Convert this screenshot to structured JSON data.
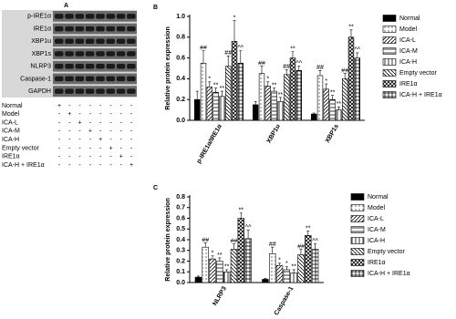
{
  "panel_a": {
    "label": "A",
    "bands": [
      "p-IRE1α",
      "IRE1α",
      "XBP1u",
      "XBP1s",
      "NLRP3",
      "Caspase-1",
      "GAPDH"
    ],
    "groups": [
      "Normal",
      "Model",
      "ICA-L",
      "ICA-M",
      "ICA-H",
      "Empty vector",
      "IRE1α",
      "ICA-H + IRE1α"
    ],
    "signs": [
      [
        "+",
        "-",
        "-",
        "-",
        "-",
        "-",
        "-",
        "-"
      ],
      [
        "-",
        "+",
        "-",
        "-",
        "-",
        "-",
        "-",
        "-"
      ],
      [
        "-",
        "-",
        "+",
        "-",
        "-",
        "-",
        "-",
        "-"
      ],
      [
        "-",
        "-",
        "-",
        "+",
        "-",
        "-",
        "-",
        "-"
      ],
      [
        "-",
        "-",
        "-",
        "-",
        "+",
        "-",
        "-",
        "-"
      ],
      [
        "-",
        "-",
        "-",
        "-",
        "-",
        "+",
        "-",
        "-"
      ],
      [
        "-",
        "-",
        "-",
        "-",
        "-",
        "-",
        "+",
        "-"
      ],
      [
        "-",
        "-",
        "-",
        "-",
        "-",
        "-",
        "-",
        "+"
      ]
    ]
  },
  "chart_data": [
    {
      "type": "bar",
      "panel": "B",
      "y_label": "Relative protein expression",
      "categories": [
        "p-IRE1α/IRE1α",
        "XBP1u",
        "XBP1s"
      ],
      "ylim": [
        0,
        1.0
      ],
      "yticks": [
        {
          "value": 0,
          "label": "0.0"
        },
        {
          "value": 0.2,
          "label": "0.2"
        },
        {
          "value": 0.4,
          "label": "0.4"
        },
        {
          "value": 0.6,
          "label": "0.6"
        },
        {
          "value": 0.8,
          "label": "0.8"
        },
        {
          "value": 1.0,
          "label": "1.0"
        }
      ],
      "series": [
        {
          "name": "Normal",
          "color": "#000000",
          "pattern": "solid",
          "values": [
            0.2,
            0.15,
            0.06
          ],
          "errors": [
            0.08,
            0.03,
            0.01
          ],
          "significance": [
            null,
            null,
            null
          ]
        },
        {
          "name": "Model",
          "color": "#000000",
          "pattern": "dots",
          "values": [
            0.55,
            0.45,
            0.43
          ],
          "errors": [
            0.12,
            0.07,
            0.05
          ],
          "significance": [
            "##",
            "##",
            "##"
          ]
        },
        {
          "name": "ICA-L",
          "color": "#000000",
          "pattern": "dlines",
          "values": [
            0.32,
            0.33,
            0.3
          ],
          "errors": [
            0.05,
            0.04,
            0.05
          ],
          "significance": [
            "*",
            "*",
            "*"
          ]
        },
        {
          "name": "ICA-M",
          "color": "#000000",
          "pattern": "hlines",
          "values": [
            0.27,
            0.28,
            0.2
          ],
          "errors": [
            0.04,
            0.03,
            0.04
          ],
          "significance": [
            "**",
            "**",
            "**"
          ]
        },
        {
          "name": "ICA-H",
          "color": "#000000",
          "pattern": "vlines",
          "values": [
            0.23,
            0.18,
            0.1
          ],
          "errors": [
            0.05,
            0.04,
            0.03
          ],
          "significance": [
            "**",
            "**",
            "**"
          ]
        },
        {
          "name": "Empty vector",
          "color": "#000000",
          "pattern": "ddown",
          "values": [
            0.52,
            0.44,
            0.4
          ],
          "errors": [
            0.1,
            0.05,
            0.05
          ],
          "significance": [
            "##",
            "##",
            "##"
          ]
        },
        {
          "name": "IRE1α",
          "color": "#000000",
          "pattern": "cross",
          "values": [
            0.76,
            0.6,
            0.8
          ],
          "errors": [
            0.2,
            0.06,
            0.07
          ],
          "significance": [
            "*",
            "**",
            "**"
          ]
        },
        {
          "name": "ICA-H + IRE1α",
          "color": "#000000",
          "pattern": "grid",
          "values": [
            0.55,
            0.48,
            0.6
          ],
          "errors": [
            0.12,
            0.04,
            0.05
          ],
          "significance": [
            "^^",
            "^^",
            "^^"
          ]
        }
      ]
    },
    {
      "type": "bar",
      "panel": "C",
      "y_label": "Relative protein expression",
      "categories": [
        "NLRP3",
        "Caspase-1"
      ],
      "ylim": [
        0,
        0.8
      ],
      "yticks": [
        {
          "value": 0,
          "label": "0.0"
        },
        {
          "value": 0.1,
          "label": "0.1"
        },
        {
          "value": 0.2,
          "label": "0.2"
        },
        {
          "value": 0.3,
          "label": "0.3"
        },
        {
          "value": 0.4,
          "label": "0.4"
        },
        {
          "value": 0.5,
          "label": "0.5"
        },
        {
          "value": 0.6,
          "label": "0.6"
        },
        {
          "value": 0.7,
          "label": "0.7"
        },
        {
          "value": 0.8,
          "label": "0.8"
        }
      ],
      "series": [
        {
          "name": "Normal",
          "color": "#000000",
          "pattern": "solid",
          "values": [
            0.05,
            0.03
          ],
          "errors": [
            0.01,
            0.01
          ],
          "significance": [
            null,
            null
          ]
        },
        {
          "name": "Model",
          "color": "#000000",
          "pattern": "dots",
          "values": [
            0.33,
            0.27
          ],
          "errors": [
            0.04,
            0.06
          ],
          "significance": [
            "##",
            "##"
          ]
        },
        {
          "name": "ICA-L",
          "color": "#000000",
          "pattern": "dlines",
          "values": [
            0.22,
            0.16
          ],
          "errors": [
            0.03,
            0.02
          ],
          "significance": [
            "*",
            "*"
          ]
        },
        {
          "name": "ICA-M",
          "color": "#000000",
          "pattern": "hlines",
          "values": [
            0.2,
            0.12
          ],
          "errors": [
            0.03,
            0.03
          ],
          "significance": [
            "**",
            "*"
          ]
        },
        {
          "name": "ICA-H",
          "color": "#000000",
          "pattern": "vlines",
          "values": [
            0.1,
            0.09
          ],
          "errors": [
            0.02,
            0.03
          ],
          "significance": [
            "**",
            "**"
          ]
        },
        {
          "name": "Empty vector",
          "color": "#000000",
          "pattern": "ddown",
          "values": [
            0.31,
            0.26
          ],
          "errors": [
            0.05,
            0.05
          ],
          "significance": [
            "##",
            "##"
          ]
        },
        {
          "name": "IRE1α",
          "color": "#000000",
          "pattern": "cross",
          "values": [
            0.6,
            0.44
          ],
          "errors": [
            0.05,
            0.04
          ],
          "significance": [
            "**",
            "**"
          ]
        },
        {
          "name": "ICA-H + IRE1α",
          "color": "#000000",
          "pattern": "grid",
          "values": [
            0.41,
            0.31
          ],
          "errors": [
            0.08,
            0.05
          ],
          "significance": [
            "^^",
            "^^"
          ]
        }
      ]
    }
  ]
}
